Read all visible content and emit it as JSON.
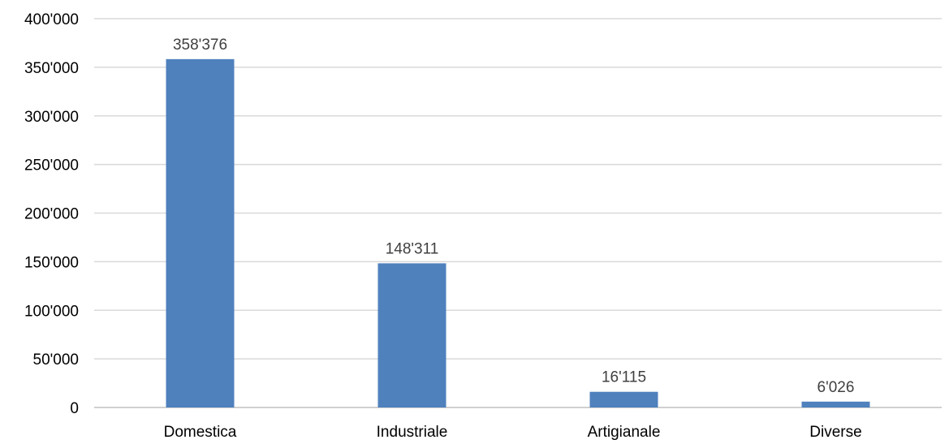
{
  "chart_data": {
    "type": "bar",
    "categories": [
      "Domestica",
      "Industriale",
      "Artigianale",
      "Diverse"
    ],
    "values": [
      358376,
      148311,
      16115,
      6026
    ],
    "value_labels": [
      "358'376",
      "148'311",
      "16'115",
      "6'026"
    ],
    "yticks": [
      {
        "value": 0,
        "label": "0"
      },
      {
        "value": 50000,
        "label": "50'000"
      },
      {
        "value": 100000,
        "label": "100'000"
      },
      {
        "value": 150000,
        "label": "150'000"
      },
      {
        "value": 200000,
        "label": "200'000"
      },
      {
        "value": 250000,
        "label": "250'000"
      },
      {
        "value": 300000,
        "label": "300'000"
      },
      {
        "value": 350000,
        "label": "350'000"
      },
      {
        "value": 400000,
        "label": "400'000"
      }
    ],
    "title": "",
    "xlabel": "",
    "ylabel": "",
    "ylim": [
      0,
      400000
    ],
    "grid": true,
    "legend": "none",
    "bar_color": "#4f81bd"
  }
}
